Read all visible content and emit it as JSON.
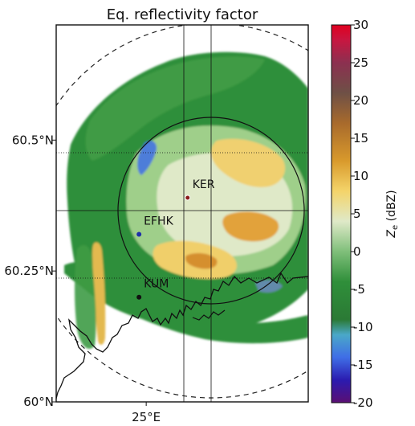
{
  "chart_data": {
    "type": "heatmap",
    "title": "Eq. reflectivity factor",
    "xlabel": "",
    "ylabel": "",
    "lon_range": [
      24.5,
      25.9
    ],
    "lat_range": [
      60.0,
      60.72
    ],
    "x_ticks": [
      {
        "value": 25.0,
        "label": "25°E"
      }
    ],
    "y_ticks": [
      {
        "value": 60.0,
        "label": "60°N"
      },
      {
        "value": 60.25,
        "label": "60.25°N"
      },
      {
        "value": 60.5,
        "label": "60.5°N"
      }
    ],
    "colorbar": {
      "label": "Z_e (dBZ)",
      "range": [
        -20,
        30
      ],
      "ticks": [
        30,
        25,
        20,
        15,
        10,
        5,
        0,
        -5,
        -10,
        -15,
        -20
      ],
      "colors": [
        {
          "v": -20,
          "c": "#5a0f73"
        },
        {
          "v": -17,
          "c": "#2b1bb0"
        },
        {
          "v": -14,
          "c": "#3f6ee6"
        },
        {
          "v": -11,
          "c": "#4aa8c8"
        },
        {
          "v": -9,
          "c": "#2b7a35"
        },
        {
          "v": -4,
          "c": "#2f8f3a"
        },
        {
          "v": 0,
          "c": "#7fbf7a"
        },
        {
          "v": 4,
          "c": "#dfe9c8"
        },
        {
          "v": 8,
          "c": "#f4d46a"
        },
        {
          "v": 12,
          "c": "#d99a2c"
        },
        {
          "v": 17,
          "c": "#a86a2c"
        },
        {
          "v": 21,
          "c": "#6e5046"
        },
        {
          "v": 25,
          "c": "#8c3050"
        },
        {
          "v": 28,
          "c": "#c81640"
        },
        {
          "v": 30,
          "c": "#e00020"
        }
      ]
    },
    "stations": [
      {
        "name": "KER",
        "lon": 25.23,
        "lat": 60.39,
        "color": "#8b1a1a"
      },
      {
        "name": "EFHK",
        "lon": 24.96,
        "lat": 60.32,
        "color": "#1f2fa8"
      },
      {
        "name": "KUM",
        "lon": 24.96,
        "lat": 60.2,
        "color": "#111111"
      }
    ],
    "range_rings": [
      {
        "style": "solid"
      },
      {
        "style": "dashed"
      }
    ]
  }
}
